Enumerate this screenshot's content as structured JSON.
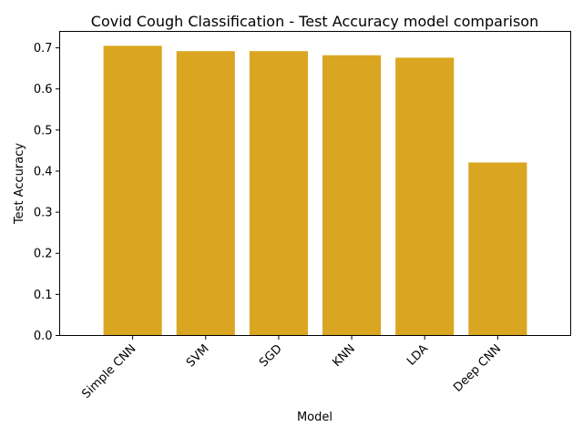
{
  "chart_data": {
    "type": "bar",
    "title": "Covid Cough Classification - Test Accuracy model comparison",
    "xlabel": "Model",
    "ylabel": "Test Accuracy",
    "categories": [
      "Simple CNN",
      "SVM",
      "SGD",
      "KNN",
      "LDA",
      "Deep CNN"
    ],
    "values": [
      0.705,
      0.692,
      0.692,
      0.682,
      0.676,
      0.421
    ],
    "ylim": [
      0,
      0.74
    ],
    "yticks": [
      "0.0",
      "0.1",
      "0.2",
      "0.3",
      "0.4",
      "0.5",
      "0.6",
      "0.7"
    ],
    "bar_color": "#DAA520",
    "grid": false,
    "legend": "none"
  }
}
